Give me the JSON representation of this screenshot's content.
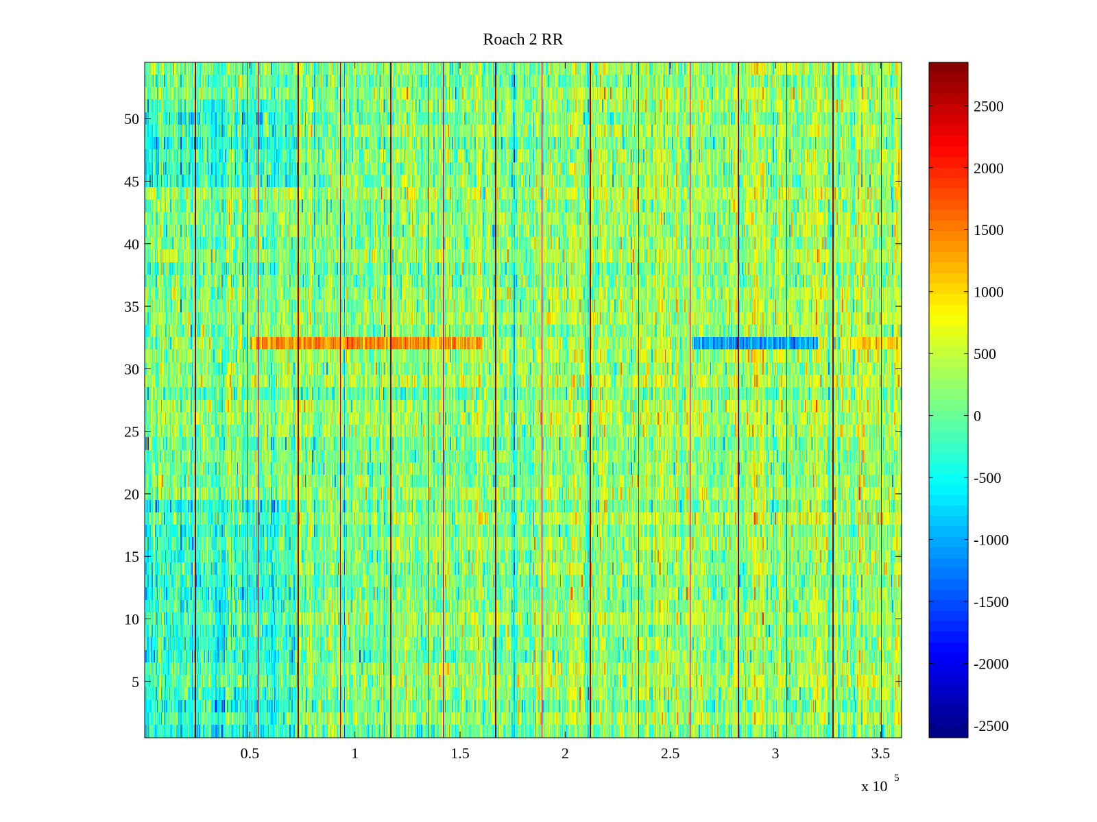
{
  "chart_data": {
    "type": "heatmap",
    "title": "Roach 2 RR",
    "xlabel": "",
    "ylabel": "",
    "x_multiplier_label": "x 10",
    "x_multiplier_exponent": "5",
    "xlim": [
      0,
      3.6
    ],
    "ylim": [
      0.5,
      54.5
    ],
    "n_rows": 54,
    "x_ticks": [
      0.5,
      1,
      1.5,
      2,
      2.5,
      3,
      3.5
    ],
    "x_tick_labels": [
      "0.5",
      "1",
      "1.5",
      "2",
      "2.5",
      "3",
      "3.5"
    ],
    "y_ticks": [
      5,
      10,
      15,
      20,
      25,
      30,
      35,
      40,
      45,
      50
    ],
    "y_tick_labels": [
      "5",
      "10",
      "15",
      "20",
      "25",
      "30",
      "35",
      "40",
      "45",
      "50"
    ],
    "colormap": "jet",
    "clim": [
      -2600,
      2850
    ],
    "colorbar_ticks": [
      2500,
      2000,
      1500,
      1000,
      500,
      0,
      -500,
      -1000,
      -1500,
      -2000,
      -2500
    ],
    "colorbar_tick_labels": [
      "2500",
      "2000",
      "1500",
      "1000",
      "500",
      "0",
      "-500",
      "-1000",
      "-1500",
      "-2000",
      "-2500"
    ],
    "dark_red_columns_x": [
      0.24,
      0.49,
      0.54,
      0.73,
      0.93,
      1.17,
      1.35,
      1.42,
      1.67,
      1.89,
      2.12,
      2.35,
      2.59,
      2.82,
      3.05,
      3.27,
      3.5
    ],
    "highlight_row": 32,
    "highlight_row_segments": [
      {
        "x_start": 0.5,
        "x_end": 1.6,
        "value": 1400
      },
      {
        "x_start": 2.6,
        "x_end": 3.2,
        "value": -1100
      },
      {
        "x_start": 3.35,
        "x_end": 3.6,
        "value": 1000
      }
    ]
  }
}
